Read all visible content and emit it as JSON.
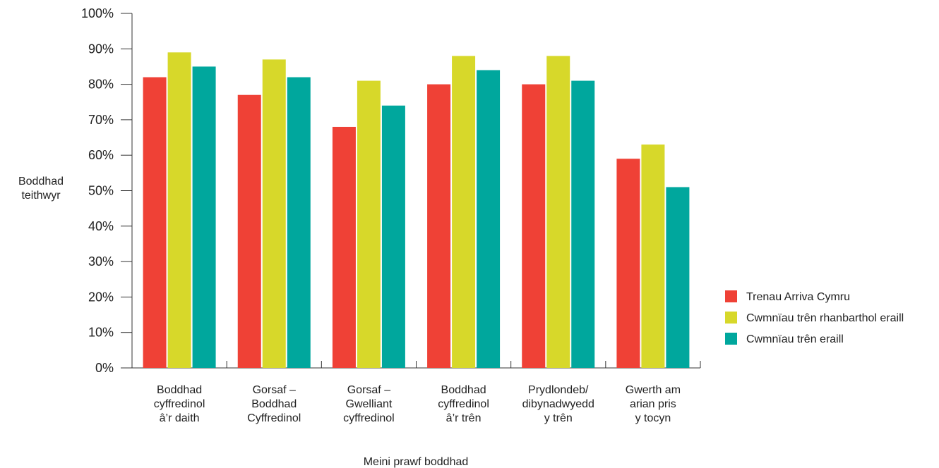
{
  "chart_data": {
    "type": "bar",
    "title": "",
    "ylabel": [
      "Boddhad",
      "teithwyr"
    ],
    "xlabel": "Meini prawf boddhad",
    "ylim": [
      0,
      100
    ],
    "yticks": [
      0,
      10,
      20,
      30,
      40,
      50,
      60,
      70,
      80,
      90,
      100
    ],
    "ytick_suffix": "%",
    "grid": false,
    "legend_position": "right",
    "categories": [
      [
        "Boddhad",
        "cyffredinol",
        "â’r daith"
      ],
      [
        "Gorsaf –",
        "Boddhad",
        "Cyffredinol"
      ],
      [
        "Gorsaf –",
        "Gwelliant",
        "cyffredinol"
      ],
      [
        "Boddhad",
        "cyffredinol",
        "â’r trên"
      ],
      [
        "Prydlondeb/",
        "dibynadwyedd",
        "y trên"
      ],
      [
        "Gwerth am",
        "arian pris",
        "y tocyn"
      ]
    ],
    "series": [
      {
        "name": "Trenau Arriva Cymru",
        "color": "#ef4136",
        "values": [
          82,
          77,
          68,
          80,
          80,
          59
        ]
      },
      {
        "name": "Cwmnïau trên rhanbarthol eraill",
        "color": "#d7d82a",
        "values": [
          89,
          87,
          81,
          88,
          88,
          63
        ]
      },
      {
        "name": "Cwmnïau trên eraill",
        "color": "#00a79d",
        "values": [
          85,
          82,
          74,
          84,
          81,
          51
        ]
      }
    ]
  }
}
